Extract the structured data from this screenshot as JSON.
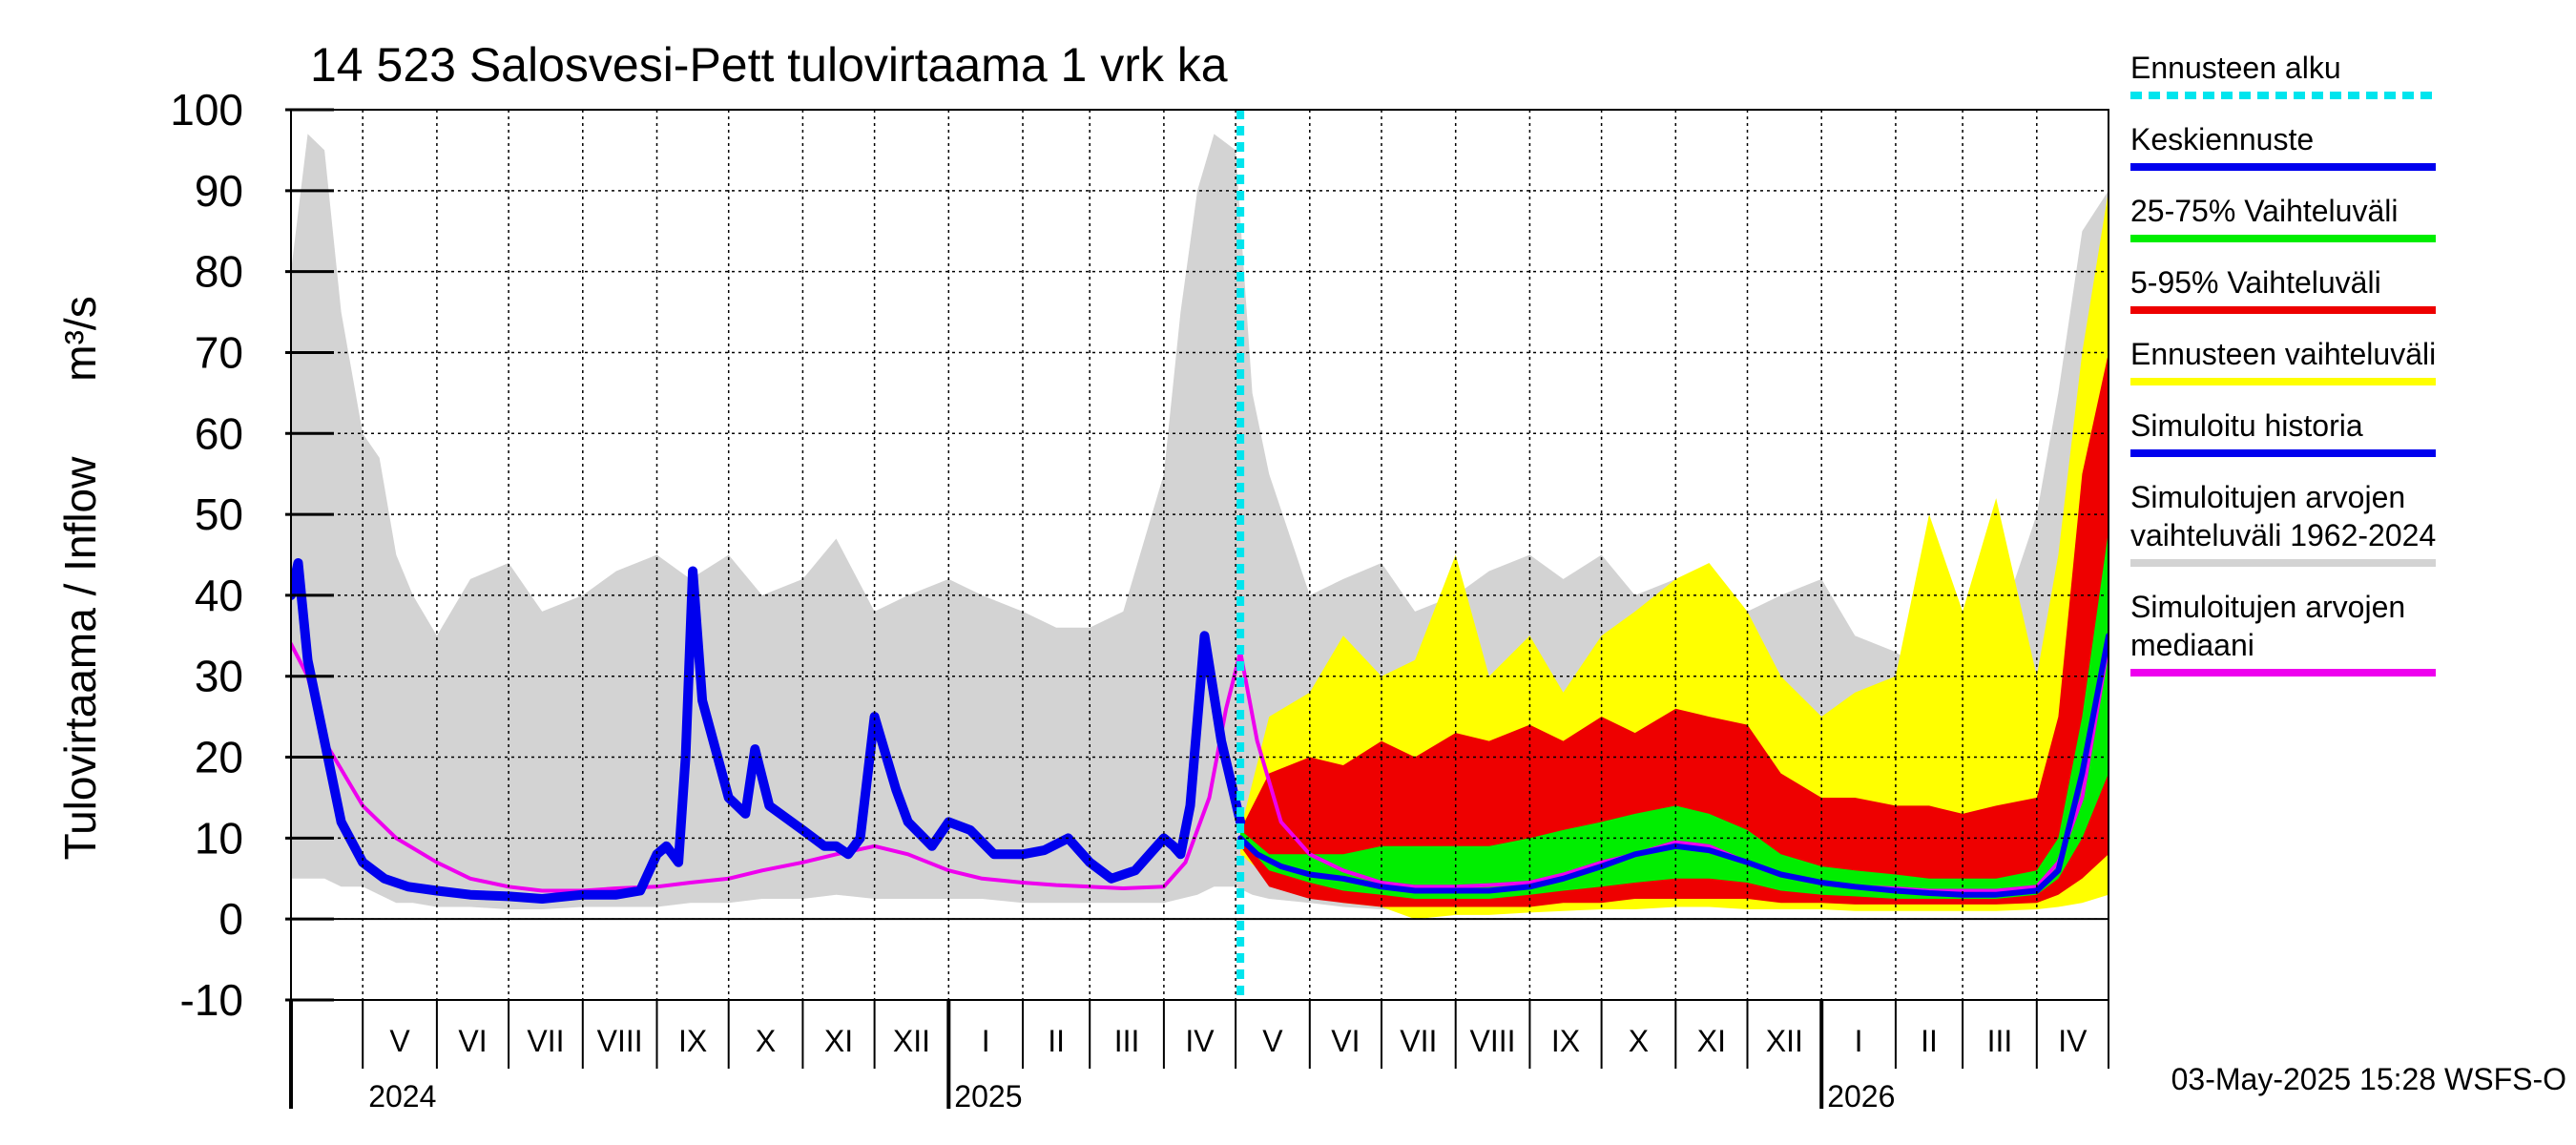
{
  "chart_data": {
    "type": "area",
    "title": "14 523 Salosvesi-Pett tulovirtaama 1 vrk ka",
    "ylabel_left": "Tulovirtaama / Inflow",
    "ylabel_unit": "m³/s",
    "ylim": [
      -10,
      100
    ],
    "yticks": [
      "-10",
      "0",
      "10",
      "20",
      "30",
      "40",
      "50",
      "60",
      "70",
      "80",
      "90",
      "100"
    ],
    "xlim": [
      "2024-04-01",
      "2026-05-01"
    ],
    "grid": true,
    "legend_position": "right",
    "forecast_start": "2025-05-03",
    "months": [
      {
        "label": "V",
        "date": "2024-05-01"
      },
      {
        "label": "VI",
        "date": "2024-06-01"
      },
      {
        "label": "VII",
        "date": "2024-07-01"
      },
      {
        "label": "VIII",
        "date": "2024-08-01"
      },
      {
        "label": "IX",
        "date": "2024-09-01"
      },
      {
        "label": "X",
        "date": "2024-10-01"
      },
      {
        "label": "XI",
        "date": "2024-11-01"
      },
      {
        "label": "XII",
        "date": "2024-12-01"
      },
      {
        "label": "I",
        "date": "2025-01-01"
      },
      {
        "label": "II",
        "date": "2025-02-01"
      },
      {
        "label": "III",
        "date": "2025-03-01"
      },
      {
        "label": "IV",
        "date": "2025-04-01"
      },
      {
        "label": "V",
        "date": "2025-05-01"
      },
      {
        "label": "VI",
        "date": "2025-06-01"
      },
      {
        "label": "VII",
        "date": "2025-07-01"
      },
      {
        "label": "VIII",
        "date": "2025-08-01"
      },
      {
        "label": "IX",
        "date": "2025-09-01"
      },
      {
        "label": "X",
        "date": "2025-10-01"
      },
      {
        "label": "XI",
        "date": "2025-11-01"
      },
      {
        "label": "XII",
        "date": "2025-12-01"
      },
      {
        "label": "I",
        "date": "2026-01-01"
      },
      {
        "label": "II",
        "date": "2026-02-01"
      },
      {
        "label": "III",
        "date": "2026-03-01"
      },
      {
        "label": "IV",
        "date": "2026-04-01"
      }
    ],
    "years": [
      {
        "label": "2024",
        "date": "2024-05-01"
      },
      {
        "label": "2025",
        "date": "2025-01-01"
      },
      {
        "label": "2026",
        "date": "2026-01-01"
      }
    ],
    "legend": [
      {
        "label": "Ennusteen alku",
        "color": "#00e5ee",
        "style": "dotted"
      },
      {
        "label": "Keskiennuste",
        "color": "#0000ee",
        "style": "solid"
      },
      {
        "label": "25-75% Vaihteluväli",
        "color": "#00ee00",
        "style": "solid"
      },
      {
        "label": "5-95% Vaihteluväli",
        "color": "#ee0000",
        "style": "solid"
      },
      {
        "label": "Ennusteen vaihteluväli",
        "color": "#ffff00",
        "style": "solid"
      },
      {
        "label": "Simuloitu historia",
        "color": "#0000ee",
        "style": "solid"
      },
      {
        "label": "Simuloitujen arvojen vaihteluväli 1962-2024",
        "lines": [
          "Simuloitujen arvojen",
          "vaihteluväli 1962-2024"
        ],
        "color": "#d3d3d3",
        "style": "solid"
      },
      {
        "label": "Simuloitujen arvojen mediaani",
        "lines": [
          "Simuloitujen arvojen",
          "mediaani"
        ],
        "color": "#ee00ee",
        "style": "solid"
      }
    ],
    "footer": "03-May-2025 15:28 WSFS-O",
    "series": [
      {
        "name": "Simuloitujen arvojen vaihteluväli 1962-2024",
        "color": "#d3d3d3",
        "kind": "band",
        "x": [
          "2024-04-01",
          "2024-04-08",
          "2024-04-15",
          "2024-04-22",
          "2024-05-01",
          "2024-05-08",
          "2024-05-15",
          "2024-05-22",
          "2024-06-01",
          "2024-06-15",
          "2024-07-01",
          "2024-07-15",
          "2024-08-01",
          "2024-08-15",
          "2024-09-01",
          "2024-09-15",
          "2024-10-01",
          "2024-10-15",
          "2024-11-01",
          "2024-11-15",
          "2024-12-01",
          "2024-12-15",
          "2025-01-01",
          "2025-01-15",
          "2025-02-01",
          "2025-02-15",
          "2025-03-01",
          "2025-03-15",
          "2025-04-01",
          "2025-04-08",
          "2025-04-15",
          "2025-04-22",
          "2025-05-01",
          "2025-05-08",
          "2025-05-15",
          "2025-06-01",
          "2025-06-15",
          "2025-07-01",
          "2025-07-15",
          "2025-08-01",
          "2025-08-15",
          "2025-09-01",
          "2025-09-15",
          "2025-10-01",
          "2025-10-15",
          "2025-11-01",
          "2025-11-15",
          "2025-12-01",
          "2025-12-15",
          "2026-01-01",
          "2026-01-15",
          "2026-02-01",
          "2026-02-15",
          "2026-03-01",
          "2026-03-15",
          "2026-04-01",
          "2026-04-10",
          "2026-04-20",
          "2026-05-01"
        ],
        "lower": [
          5,
          5,
          5,
          4,
          4,
          3,
          2,
          2,
          1.5,
          1.5,
          1.2,
          1.2,
          1.5,
          1.5,
          1.5,
          2,
          2,
          2.5,
          2.5,
          3,
          2.5,
          2.5,
          2.5,
          2.5,
          2,
          2,
          2,
          2,
          2,
          2.5,
          3,
          4,
          4,
          3,
          2.5,
          2,
          1.5,
          1.2,
          1.2,
          1.5,
          1.5,
          1.5,
          2,
          2,
          2.5,
          2.5,
          3,
          2.5,
          2.5,
          2.5,
          2.5,
          2,
          2,
          2,
          2,
          2,
          2.5,
          3,
          4
        ],
        "upper": [
          80,
          97,
          95,
          75,
          60,
          57,
          45,
          40,
          35,
          42,
          44,
          38,
          40,
          43,
          45,
          42,
          45,
          40,
          42,
          47,
          38,
          40,
          42,
          40,
          38,
          36,
          36,
          38,
          55,
          75,
          90,
          97,
          95,
          65,
          55,
          40,
          42,
          44,
          38,
          40,
          43,
          45,
          42,
          45,
          40,
          42,
          42,
          38,
          40,
          42,
          35,
          33,
          30,
          32,
          35,
          50,
          65,
          85,
          90
        ]
      },
      {
        "name": "Ennusteen vaihteluväli",
        "color": "#ffff00",
        "kind": "band",
        "x": [
          "2025-05-03",
          "2025-05-15",
          "2025-06-01",
          "2025-06-15",
          "2025-07-01",
          "2025-07-15",
          "2025-08-01",
          "2025-08-15",
          "2025-09-01",
          "2025-09-15",
          "2025-10-01",
          "2025-10-15",
          "2025-11-01",
          "2025-11-15",
          "2025-12-01",
          "2025-12-15",
          "2026-01-01",
          "2026-01-15",
          "2026-02-01",
          "2026-02-15",
          "2026-03-01",
          "2026-03-15",
          "2026-04-01",
          "2026-04-10",
          "2026-04-20",
          "2026-05-01"
        ],
        "lower": [
          8,
          5,
          3,
          2,
          1.5,
          0,
          0.5,
          0.5,
          0.8,
          1,
          1.2,
          1.2,
          1.5,
          1.5,
          1.2,
          1.2,
          1.2,
          1,
          1,
          1,
          1,
          1,
          1.2,
          1.5,
          2,
          3
        ],
        "upper": [
          11,
          25,
          28,
          35,
          30,
          32,
          45,
          30,
          35,
          28,
          35,
          38,
          42,
          44,
          38,
          30,
          25,
          28,
          30,
          50,
          38,
          52,
          30,
          45,
          70,
          90
        ]
      },
      {
        "name": "5-95% Vaihteluväli",
        "color": "#ee0000",
        "kind": "band",
        "x": [
          "2025-05-03",
          "2025-05-15",
          "2025-06-01",
          "2025-06-15",
          "2025-07-01",
          "2025-07-15",
          "2025-08-01",
          "2025-08-15",
          "2025-09-01",
          "2025-09-15",
          "2025-10-01",
          "2025-10-15",
          "2025-11-01",
          "2025-11-15",
          "2025-12-01",
          "2025-12-15",
          "2026-01-01",
          "2026-01-15",
          "2026-02-01",
          "2026-02-15",
          "2026-03-01",
          "2026-03-15",
          "2026-04-01",
          "2026-04-10",
          "2026-04-20",
          "2026-05-01"
        ],
        "lower": [
          9,
          4,
          2.5,
          2,
          1.5,
          1.5,
          1.5,
          1.5,
          1.5,
          2,
          2,
          2.5,
          2.5,
          2.5,
          2.5,
          2,
          2,
          1.8,
          1.8,
          1.8,
          1.8,
          1.8,
          2,
          3,
          5,
          8
        ],
        "upper": [
          11,
          18,
          20,
          19,
          22,
          20,
          23,
          22,
          24,
          22,
          25,
          23,
          26,
          25,
          24,
          18,
          15,
          15,
          14,
          14,
          13,
          14,
          15,
          25,
          55,
          70
        ]
      },
      {
        "name": "25-75% Vaihteluväli",
        "color": "#00ee00",
        "kind": "band",
        "x": [
          "2025-05-03",
          "2025-05-15",
          "2025-06-01",
          "2025-06-15",
          "2025-07-01",
          "2025-07-15",
          "2025-08-01",
          "2025-08-15",
          "2025-09-01",
          "2025-09-15",
          "2025-10-01",
          "2025-10-15",
          "2025-11-01",
          "2025-11-15",
          "2025-12-01",
          "2025-12-15",
          "2026-01-01",
          "2026-01-15",
          "2026-02-01",
          "2026-02-15",
          "2026-03-01",
          "2026-03-15",
          "2026-04-01",
          "2026-04-10",
          "2026-04-20",
          "2026-05-01"
        ],
        "lower": [
          10,
          6,
          4.5,
          3.5,
          3,
          2.5,
          2.5,
          2.5,
          3,
          3.5,
          4,
          4.5,
          5,
          5,
          4.5,
          3.5,
          3,
          2.8,
          2.5,
          2.5,
          2.5,
          2.5,
          3,
          5,
          10,
          18
        ],
        "upper": [
          11,
          8,
          8,
          8,
          9,
          9,
          9,
          9,
          10,
          11,
          12,
          13,
          14,
          13,
          11,
          8,
          6.5,
          6,
          5.5,
          5,
          5,
          5,
          6,
          10,
          25,
          48
        ]
      },
      {
        "name": "Simuloitujen arvojen mediaani",
        "color": "#ee00ee",
        "kind": "line",
        "width": 4,
        "x": [
          "2024-04-01",
          "2024-04-08",
          "2024-04-15",
          "2024-05-01",
          "2024-05-15",
          "2024-06-01",
          "2024-06-15",
          "2024-07-01",
          "2024-07-15",
          "2024-08-01",
          "2024-08-15",
          "2024-09-01",
          "2024-09-15",
          "2024-10-01",
          "2024-10-15",
          "2024-11-01",
          "2024-11-15",
          "2024-12-01",
          "2024-12-15",
          "2025-01-01",
          "2025-01-15",
          "2025-02-01",
          "2025-02-15",
          "2025-03-01",
          "2025-03-15",
          "2025-04-01",
          "2025-04-10",
          "2025-04-20",
          "2025-04-27",
          "2025-05-03",
          "2025-05-10",
          "2025-05-20",
          "2025-06-01",
          "2025-06-15",
          "2025-07-01",
          "2025-07-15",
          "2025-08-01",
          "2025-08-15",
          "2025-09-01",
          "2025-09-15",
          "2025-10-01",
          "2025-10-15",
          "2025-11-01",
          "2025-11-15",
          "2025-12-01",
          "2025-12-15",
          "2026-01-01",
          "2026-01-15",
          "2026-02-01",
          "2026-02-15",
          "2026-03-01",
          "2026-03-15",
          "2026-04-01",
          "2026-04-10",
          "2026-04-20",
          "2026-05-01"
        ],
        "values": [
          34,
          30,
          22,
          14,
          10,
          7,
          5,
          4,
          3.5,
          3.5,
          3.8,
          4,
          4.5,
          5,
          6,
          7,
          8,
          9,
          8,
          6,
          5,
          4.5,
          4.2,
          4,
          3.8,
          4,
          7,
          15,
          26,
          33,
          22,
          12,
          8,
          6,
          4.5,
          4,
          4,
          4.2,
          4.5,
          5.5,
          7,
          8,
          9.5,
          9,
          7,
          5.5,
          4.5,
          4,
          3.8,
          3.5,
          3.5,
          3.5,
          4,
          7,
          15,
          34
        ]
      },
      {
        "name": "Simuloitu historia",
        "color": "#0000ee",
        "kind": "line",
        "width": 10,
        "x": [
          "2024-04-01",
          "2024-04-04",
          "2024-04-08",
          "2024-04-15",
          "2024-04-22",
          "2024-05-01",
          "2024-05-10",
          "2024-05-20",
          "2024-06-01",
          "2024-06-15",
          "2024-07-01",
          "2024-07-15",
          "2024-08-01",
          "2024-08-15",
          "2024-08-25",
          "2024-09-01",
          "2024-09-05",
          "2024-09-10",
          "2024-09-13",
          "2024-09-16",
          "2024-09-20",
          "2024-10-01",
          "2024-10-08",
          "2024-10-12",
          "2024-10-18",
          "2024-11-01",
          "2024-11-10",
          "2024-11-15",
          "2024-11-20",
          "2024-11-25",
          "2024-12-01",
          "2024-12-10",
          "2024-12-15",
          "2024-12-25",
          "2025-01-01",
          "2025-01-10",
          "2025-01-20",
          "2025-02-01",
          "2025-02-10",
          "2025-02-20",
          "2025-03-01",
          "2025-03-10",
          "2025-03-20",
          "2025-04-01",
          "2025-04-05",
          "2025-04-08",
          "2025-04-12",
          "2025-04-18",
          "2025-04-25",
          "2025-05-03"
        ],
        "values": [
          40,
          44,
          32,
          22,
          12,
          7,
          5,
          4,
          3.5,
          3,
          2.8,
          2.5,
          3,
          3,
          3.5,
          8,
          9,
          7,
          20,
          43,
          27,
          15,
          13,
          21,
          14,
          11,
          9,
          9,
          8,
          10,
          25,
          16,
          12,
          9,
          12,
          11,
          8,
          8,
          8.5,
          10,
          7,
          5,
          6,
          10,
          9,
          8,
          14,
          35,
          22,
          12
        ]
      },
      {
        "name": "Keskiennuste",
        "color": "#0000ee",
        "kind": "line",
        "width": 6,
        "x": [
          "2025-05-03",
          "2025-05-10",
          "2025-05-20",
          "2025-06-01",
          "2025-06-15",
          "2025-07-01",
          "2025-07-15",
          "2025-08-01",
          "2025-08-15",
          "2025-09-01",
          "2025-09-15",
          "2025-10-01",
          "2025-10-15",
          "2025-11-01",
          "2025-11-15",
          "2025-12-01",
          "2025-12-15",
          "2026-01-01",
          "2026-01-15",
          "2026-02-01",
          "2026-02-15",
          "2026-03-01",
          "2026-03-15",
          "2026-04-01",
          "2026-04-10",
          "2026-04-20",
          "2026-05-01"
        ],
        "values": [
          10,
          8,
          6.5,
          5.5,
          5,
          4,
          3.5,
          3.5,
          3.5,
          4,
          5,
          6.5,
          8,
          9,
          8.5,
          7,
          5.5,
          4.5,
          4,
          3.5,
          3.2,
          3,
          3,
          3.5,
          6,
          18,
          35
        ]
      }
    ]
  }
}
